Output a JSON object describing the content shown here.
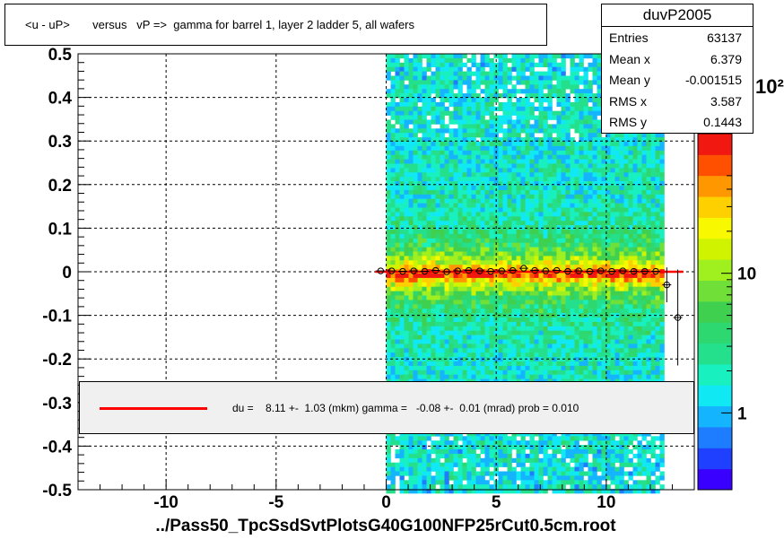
{
  "chart_data": {
    "type": "heatmap",
    "title": "<u - uP>       versus   vP =>  gamma for barrel 1, layer 2 ladder 5, all wafers",
    "xlabel": "../Pass50_TpcSsdSvtPlotsG40G100NFP25rCut0.5cm.root",
    "ylabel": "",
    "xlim": [
      -14,
      14
    ],
    "ylim": [
      -0.5,
      0.5
    ],
    "x_ticks": [
      -10,
      -5,
      0,
      5,
      10
    ],
    "x_tick_labels": [
      "-10",
      "-5",
      "0",
      "5",
      "10"
    ],
    "y_ticks": [
      -0.5,
      -0.4,
      -0.3,
      -0.2,
      -0.1,
      0,
      0.1,
      0.2,
      0.3,
      0.4,
      0.5
    ],
    "y_tick_labels": [
      "-0.5",
      "-0.4",
      "-0.3",
      "-0.2",
      "-0.1",
      "0",
      "0.1",
      "0.2",
      "0.3",
      "0.4",
      "0.5"
    ],
    "z_scale": "log",
    "z_tick_labels": [
      "1",
      "10"
    ],
    "z_partial_label": "10²",
    "grid": true,
    "data_x_range": [
      0,
      12.5
    ],
    "band_center": 0.0,
    "profile_points": [
      {
        "x": -0.25,
        "y": 0.002
      },
      {
        "x": 0.25,
        "y": 0.002
      },
      {
        "x": 0.75,
        "y": 0.001
      },
      {
        "x": 1.25,
        "y": 0.002
      },
      {
        "x": 1.75,
        "y": 0.001
      },
      {
        "x": 2.25,
        "y": 0.003
      },
      {
        "x": 2.75,
        "y": 0.0
      },
      {
        "x": 3.25,
        "y": 0.002
      },
      {
        "x": 3.75,
        "y": 0.003
      },
      {
        "x": 4.25,
        "y": 0.002
      },
      {
        "x": 4.75,
        "y": 0.001
      },
      {
        "x": 5.25,
        "y": 0.002
      },
      {
        "x": 5.75,
        "y": 0.003
      },
      {
        "x": 6.25,
        "y": 0.008
      },
      {
        "x": 6.75,
        "y": 0.003
      },
      {
        "x": 7.25,
        "y": 0.002
      },
      {
        "x": 7.75,
        "y": 0.003
      },
      {
        "x": 8.25,
        "y": 0.001
      },
      {
        "x": 8.75,
        "y": 0.002
      },
      {
        "x": 9.25,
        "y": 0.001
      },
      {
        "x": 9.75,
        "y": 0.002
      },
      {
        "x": 10.25,
        "y": 0.001
      },
      {
        "x": 10.75,
        "y": 0.002
      },
      {
        "x": 11.25,
        "y": 0.001
      },
      {
        "x": 11.75,
        "y": 0.001
      },
      {
        "x": 12.25,
        "y": 0.001
      },
      {
        "x": 12.75,
        "y": -0.03,
        "err": 0.04
      },
      {
        "x": 13.25,
        "y": -0.105,
        "err": 0.11
      }
    ],
    "fit_line": {
      "x0": -0.5,
      "x1": 13.5,
      "y": 0.0,
      "color": "#ff0000"
    },
    "stats": {
      "name": "duvP2005",
      "rows": [
        {
          "label": "Entries",
          "value": "63137"
        },
        {
          "label": "Mean x",
          "value": "6.379"
        },
        {
          "label": "Mean y",
          "value": "-0.001515"
        },
        {
          "label": "RMS x",
          "value": "3.587"
        },
        {
          "label": "RMS y",
          "value": "0.1443"
        }
      ]
    },
    "legend": {
      "text": "du =    8.11 +-  1.03 (mkm) gamma =   -0.08 +-  0.01 (mrad) prob = 0.010",
      "color": "#ff0000"
    }
  }
}
